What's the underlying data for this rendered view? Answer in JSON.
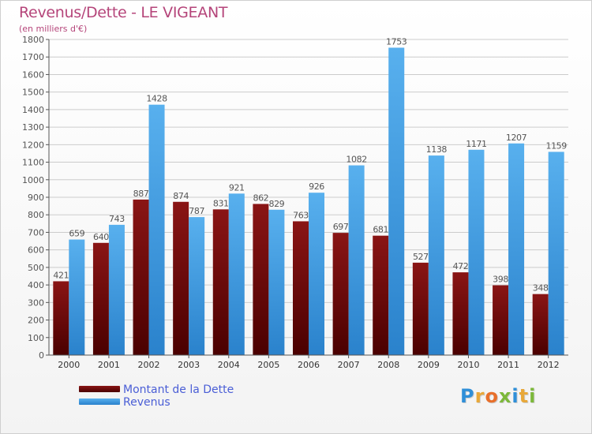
{
  "title": "Revenus/Dette - LE VIGEANT",
  "subtitle": "(en milliers d'€)",
  "logo": {
    "letters": [
      {
        "ch": "P",
        "color": "#2f8fd8"
      },
      {
        "ch": "r",
        "color": "#e8a83a"
      },
      {
        "ch": "o",
        "color": "#e86f2a"
      },
      {
        "ch": "x",
        "color": "#7cb83a"
      },
      {
        "ch": "i",
        "color": "#2f8fd8"
      },
      {
        "ch": "t",
        "color": "#e8a83a"
      },
      {
        "ch": "i",
        "color": "#7cb83a"
      }
    ]
  },
  "colors": {
    "dette": "#7a0b0b",
    "revenus": "#3f9ee6",
    "axis": "#555555",
    "grid": "#cccccc",
    "label": "#555555"
  },
  "chart_data": {
    "type": "bar",
    "title": "Revenus/Dette - LE VIGEANT",
    "categories": [
      "2000",
      "2001",
      "2002",
      "2003",
      "2004",
      "2005",
      "2006",
      "2007",
      "2008",
      "2009",
      "2010",
      "2011",
      "2012"
    ],
    "series": [
      {
        "name": "Montant de la Dette",
        "values": [
          421,
          640,
          887,
          874,
          831,
          862,
          763,
          697,
          681,
          527,
          472,
          398,
          348
        ]
      },
      {
        "name": "Revenus",
        "values": [
          659,
          743,
          1428,
          787,
          921,
          829,
          926,
          1082,
          1753,
          1138,
          1171,
          1207,
          1159
        ]
      }
    ],
    "ylim": [
      0,
      1800
    ],
    "yticks": [
      0,
      100,
      200,
      300,
      400,
      500,
      600,
      700,
      800,
      900,
      1000,
      1100,
      1200,
      1300,
      1400,
      1500,
      1600,
      1700,
      1800
    ],
    "grid": true,
    "legend": "bottom-left"
  }
}
